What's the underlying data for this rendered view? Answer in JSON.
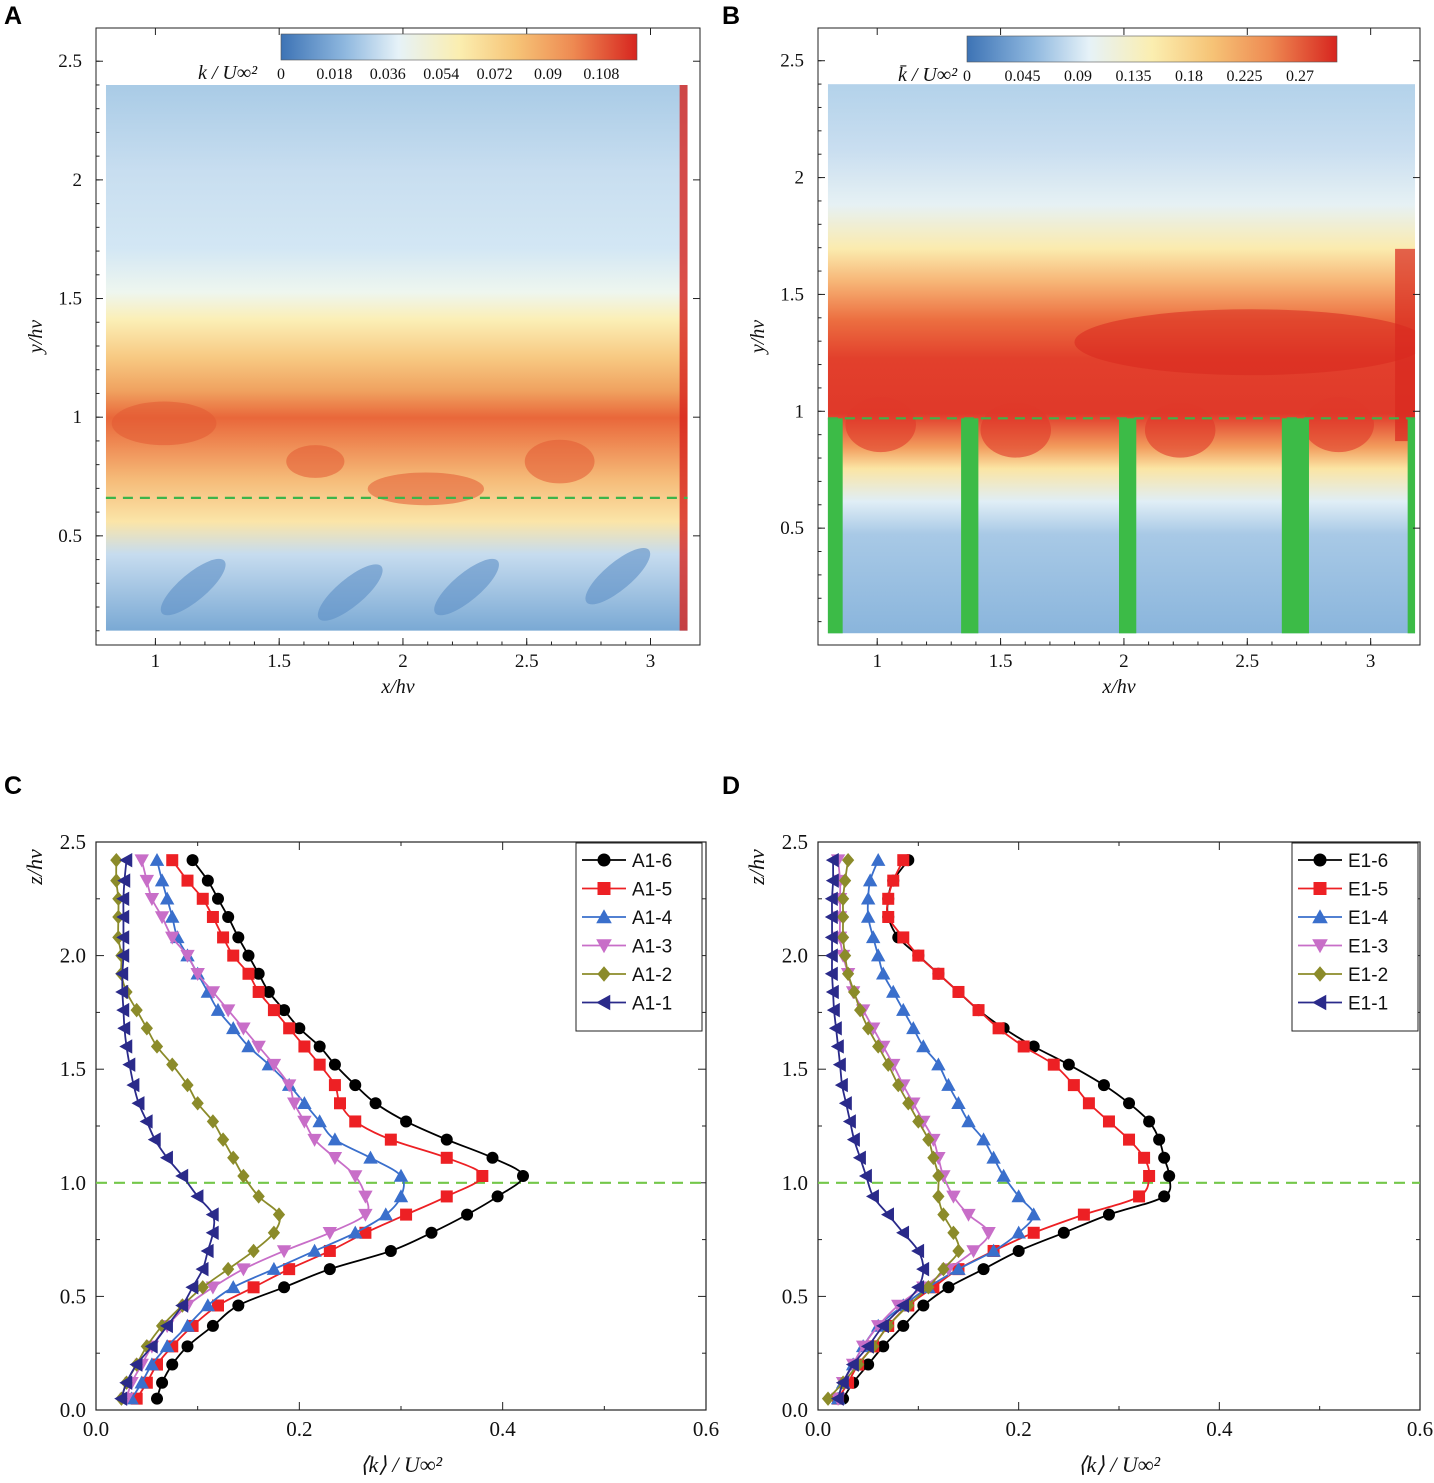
{
  "panels": {
    "A": "A",
    "B": "B",
    "C": "C",
    "D": "D"
  },
  "chart_data": [
    {
      "panel": "A",
      "type": "heatmap",
      "xlabel": "x/hv",
      "ylabel": "y/hv",
      "xlim": [
        0.76,
        3.2
      ],
      "ylim": [
        0.04,
        2.64
      ],
      "field_extent": {
        "x": [
          0.8,
          3.15
        ],
        "y": [
          0.1,
          2.4
        ]
      },
      "xticks": [
        "1",
        "1.5",
        "2",
        "2.5",
        "3"
      ],
      "yticks": [
        "0.5",
        "1",
        "1.5",
        "2",
        "2.5"
      ],
      "colorbar": {
        "label": "k / U∞²",
        "ticks": [
          "0",
          "0.018",
          "0.036",
          "0.054",
          "0.072",
          "0.09",
          "0.108"
        ],
        "range": [
          0,
          0.12
        ]
      },
      "reference_line_y": 0.66,
      "reference_line_color": "#3cb44b"
    },
    {
      "panel": "B",
      "type": "heatmap",
      "xlabel": "x/hv",
      "ylabel": "y/hv",
      "xlim": [
        0.76,
        3.2
      ],
      "ylim": [
        0.0,
        2.64
      ],
      "field_extent": {
        "x": [
          0.8,
          3.18
        ],
        "y": [
          0.05,
          2.4
        ]
      },
      "xticks": [
        "1",
        "1.5",
        "2",
        "2.5",
        "3"
      ],
      "yticks": [
        "0.5",
        "1",
        "1.5",
        "2",
        "2.5"
      ],
      "colorbar": {
        "label": "k̄ / U∞²",
        "ticks": [
          "0",
          "0.045",
          "0.09",
          "0.135",
          "0.18",
          "0.225",
          "0.27"
        ],
        "range": [
          0,
          0.3
        ]
      },
      "reference_line_y": 0.97,
      "reference_line_color": "#3cb44b",
      "vegetation_stems_x": [
        [
          0.8,
          0.86
        ],
        [
          1.34,
          1.41
        ],
        [
          1.98,
          2.05
        ],
        [
          2.64,
          2.75
        ],
        [
          3.15,
          3.18
        ]
      ]
    },
    {
      "panel": "C",
      "type": "line",
      "xlabel": "⟨k⟩ / U∞²",
      "ylabel": "z/hv",
      "xlim": [
        0,
        0.6
      ],
      "ylim": [
        0,
        2.5
      ],
      "xticks": [
        "0.0",
        "0.2",
        "0.4",
        "0.6"
      ],
      "yticks": [
        "0.0",
        "0.5",
        "1.0",
        "1.5",
        "2.0",
        "2.5"
      ],
      "reference_line_y": 1.0,
      "z": [
        0.05,
        0.12,
        0.2,
        0.28,
        0.37,
        0.46,
        0.54,
        0.62,
        0.7,
        0.78,
        0.86,
        0.94,
        1.03,
        1.11,
        1.19,
        1.27,
        1.35,
        1.43,
        1.52,
        1.6,
        1.68,
        1.76,
        1.84,
        1.92,
        2.0,
        2.08,
        2.17,
        2.25,
        2.33,
        2.42
      ],
      "series": [
        {
          "name": "A1-6",
          "color": "#000000",
          "marker": "circle",
          "values": [
            0.06,
            0.065,
            0.075,
            0.09,
            0.115,
            0.14,
            0.185,
            0.23,
            0.29,
            0.33,
            0.365,
            0.395,
            0.42,
            0.39,
            0.345,
            0.305,
            0.275,
            0.255,
            0.235,
            0.22,
            0.2,
            0.185,
            0.17,
            0.16,
            0.15,
            0.14,
            0.13,
            0.12,
            0.11,
            0.095
          ]
        },
        {
          "name": "A1-5",
          "color": "#ed2024",
          "marker": "square",
          "values": [
            0.04,
            0.05,
            0.06,
            0.075,
            0.095,
            0.12,
            0.155,
            0.19,
            0.23,
            0.265,
            0.305,
            0.345,
            0.38,
            0.345,
            0.29,
            0.255,
            0.24,
            0.235,
            0.22,
            0.205,
            0.19,
            0.175,
            0.16,
            0.15,
            0.135,
            0.125,
            0.115,
            0.105,
            0.09,
            0.075
          ]
        },
        {
          "name": "A1-4",
          "color": "#3a6fcc",
          "marker": "triangle-up",
          "values": [
            0.035,
            0.045,
            0.055,
            0.07,
            0.09,
            0.11,
            0.135,
            0.175,
            0.215,
            0.255,
            0.285,
            0.3,
            0.3,
            0.27,
            0.235,
            0.22,
            0.205,
            0.19,
            0.17,
            0.15,
            0.135,
            0.12,
            0.11,
            0.1,
            0.09,
            0.08,
            0.075,
            0.07,
            0.065,
            0.06
          ]
        },
        {
          "name": "A1-3",
          "color": "#c86ec8",
          "marker": "triangle-down",
          "values": [
            0.03,
            0.035,
            0.045,
            0.055,
            0.07,
            0.09,
            0.115,
            0.145,
            0.185,
            0.23,
            0.265,
            0.265,
            0.255,
            0.235,
            0.215,
            0.205,
            0.195,
            0.19,
            0.175,
            0.16,
            0.145,
            0.13,
            0.115,
            0.1,
            0.09,
            0.075,
            0.065,
            0.055,
            0.05,
            0.045
          ]
        },
        {
          "name": "A1-2",
          "color": "#8b8b2a",
          "marker": "diamond",
          "values": [
            0.025,
            0.03,
            0.04,
            0.05,
            0.065,
            0.085,
            0.105,
            0.13,
            0.155,
            0.175,
            0.18,
            0.16,
            0.145,
            0.135,
            0.125,
            0.115,
            0.1,
            0.09,
            0.075,
            0.06,
            0.05,
            0.04,
            0.03,
            0.025,
            0.025,
            0.022,
            0.022,
            0.022,
            0.02,
            0.02
          ]
        },
        {
          "name": "A1-1",
          "color": "#2a2a8a",
          "marker": "triangle-left",
          "values": [
            0.025,
            0.03,
            0.04,
            0.055,
            0.07,
            0.085,
            0.095,
            0.105,
            0.11,
            0.115,
            0.115,
            0.1,
            0.085,
            0.07,
            0.058,
            0.05,
            0.042,
            0.037,
            0.033,
            0.03,
            0.028,
            0.027,
            0.026,
            0.026,
            0.027,
            0.027,
            0.027,
            0.027,
            0.028,
            0.03
          ]
        }
      ]
    },
    {
      "panel": "D",
      "type": "line",
      "xlabel": "⟨k⟩ / U∞²",
      "ylabel": "z/hv",
      "xlim": [
        0,
        0.6
      ],
      "ylim": [
        0,
        2.5
      ],
      "xticks": [
        "0.0",
        "0.2",
        "0.4",
        "0.6"
      ],
      "yticks": [
        "0.0",
        "0.5",
        "1.0",
        "1.5",
        "2.0",
        "2.5"
      ],
      "reference_line_y": 1.0,
      "z": [
        0.05,
        0.12,
        0.2,
        0.28,
        0.37,
        0.46,
        0.54,
        0.62,
        0.7,
        0.78,
        0.86,
        0.94,
        1.03,
        1.11,
        1.19,
        1.27,
        1.35,
        1.43,
        1.52,
        1.6,
        1.68,
        1.76,
        1.84,
        1.92,
        2.0,
        2.08,
        2.17,
        2.25,
        2.33,
        2.42
      ],
      "series": [
        {
          "name": "E1-6",
          "color": "#000000",
          "marker": "circle",
          "values": [
            0.025,
            0.035,
            0.05,
            0.065,
            0.085,
            0.105,
            0.13,
            0.165,
            0.2,
            0.245,
            0.29,
            0.345,
            0.35,
            0.345,
            0.34,
            0.33,
            0.31,
            0.285,
            0.25,
            0.215,
            0.185,
            0.16,
            0.14,
            0.12,
            0.1,
            0.08,
            0.07,
            0.07,
            0.075,
            0.09
          ]
        },
        {
          "name": "E1-5",
          "color": "#ed2024",
          "marker": "square",
          "values": [
            0.02,
            0.03,
            0.04,
            0.055,
            0.07,
            0.09,
            0.115,
            0.14,
            0.175,
            0.215,
            0.265,
            0.32,
            0.33,
            0.325,
            0.31,
            0.29,
            0.27,
            0.255,
            0.235,
            0.205,
            0.18,
            0.16,
            0.14,
            0.12,
            0.1,
            0.085,
            0.07,
            0.07,
            0.075,
            0.085
          ]
        },
        {
          "name": "E1-4",
          "color": "#3a6fcc",
          "marker": "triangle-up",
          "values": [
            0.02,
            0.025,
            0.035,
            0.045,
            0.06,
            0.085,
            0.11,
            0.14,
            0.175,
            0.2,
            0.215,
            0.2,
            0.185,
            0.175,
            0.165,
            0.15,
            0.14,
            0.13,
            0.12,
            0.105,
            0.095,
            0.085,
            0.075,
            0.065,
            0.06,
            0.055,
            0.05,
            0.05,
            0.052,
            0.06
          ]
        },
        {
          "name": "E1-3",
          "color": "#c86ec8",
          "marker": "triangle-down",
          "values": [
            0.02,
            0.025,
            0.035,
            0.045,
            0.06,
            0.08,
            0.105,
            0.13,
            0.155,
            0.17,
            0.15,
            0.135,
            0.125,
            0.12,
            0.115,
            0.105,
            0.095,
            0.085,
            0.075,
            0.065,
            0.055,
            0.045,
            0.035,
            0.03,
            0.025,
            0.022,
            0.022,
            0.022,
            0.022,
            0.02
          ]
        },
        {
          "name": "E1-2",
          "color": "#8b8b2a",
          "marker": "diamond",
          "values": [
            0.01,
            0.025,
            0.04,
            0.055,
            0.07,
            0.09,
            0.11,
            0.125,
            0.14,
            0.135,
            0.125,
            0.12,
            0.12,
            0.115,
            0.11,
            0.1,
            0.09,
            0.08,
            0.07,
            0.06,
            0.05,
            0.042,
            0.036,
            0.03,
            0.027,
            0.025,
            0.025,
            0.025,
            0.027,
            0.03
          ]
        },
        {
          "name": "E1-1",
          "color": "#2a2a8a",
          "marker": "triangle-left",
          "values": [
            0.02,
            0.025,
            0.035,
            0.05,
            0.065,
            0.085,
            0.1,
            0.105,
            0.1,
            0.085,
            0.07,
            0.055,
            0.048,
            0.042,
            0.036,
            0.032,
            0.028,
            0.024,
            0.022,
            0.02,
            0.018,
            0.016,
            0.015,
            0.014,
            0.014,
            0.014,
            0.014,
            0.014,
            0.015,
            0.015
          ]
        }
      ]
    }
  ]
}
